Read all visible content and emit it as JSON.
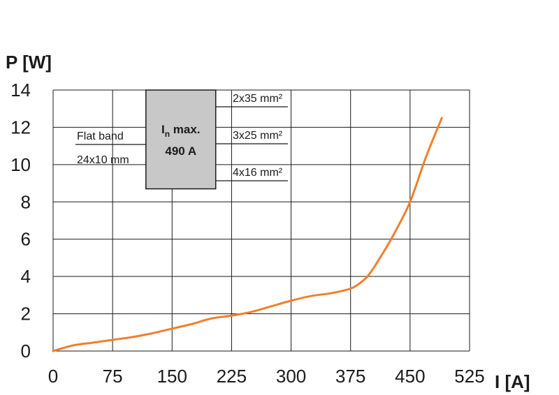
{
  "chart_data": {
    "type": "line",
    "title": "",
    "xlabel": "I [A]",
    "ylabel": "P [W]",
    "xlim": [
      0,
      525
    ],
    "ylim": [
      0,
      14
    ],
    "x_ticks": [
      0,
      75,
      150,
      225,
      300,
      375,
      450,
      525
    ],
    "y_ticks": [
      0,
      2,
      4,
      6,
      8,
      10,
      12,
      14
    ],
    "grid": true,
    "series": [
      {
        "color": "#f07f2d",
        "x": [
          0,
          25,
          50,
          75,
          100,
          125,
          150,
          175,
          200,
          225,
          250,
          275,
          300,
          325,
          350,
          375,
          390,
          400,
          415,
          430,
          450,
          470,
          490
        ],
        "y": [
          0,
          0.3,
          0.45,
          0.6,
          0.75,
          0.95,
          1.2,
          1.45,
          1.75,
          1.9,
          2.1,
          2.4,
          2.7,
          2.95,
          3.1,
          3.35,
          3.75,
          4.2,
          5.2,
          6.3,
          8.0,
          10.4,
          12.5
        ]
      }
    ],
    "annotations": {
      "flat_band_line1": "Flat band",
      "flat_band_line2": "24x10 mm",
      "box_line1_main": "I",
      "box_line1_sub": "n",
      "box_line1_rest": " max.",
      "box_line2": "490 A",
      "box_y_range": [
        8.7,
        14
      ],
      "box_x_range": [
        117,
        205
      ],
      "wire_labels": [
        "2x35 mm²",
        "3x25 mm²",
        "4x16 mm²"
      ],
      "box_color": "#c8c8c8"
    }
  }
}
